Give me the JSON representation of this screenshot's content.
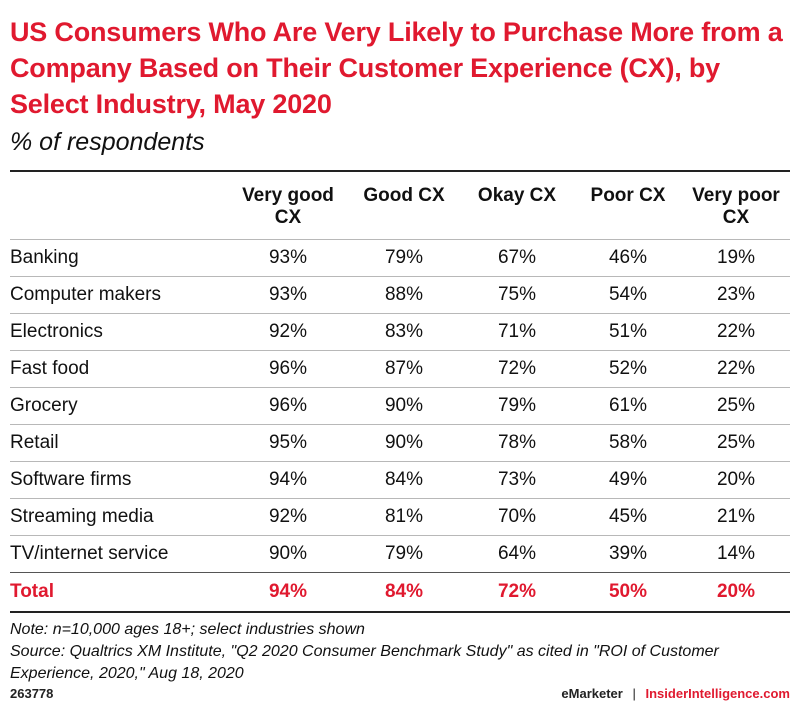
{
  "chart_data": {
    "type": "table",
    "title": "US Consumers Who Are Very Likely to Purchase More from a Company Based on Their Customer Experience (CX), by Select Industry, May 2020",
    "subtitle": "% of respondents",
    "columns": [
      "Very good CX",
      "Good CX",
      "Okay CX",
      "Poor CX",
      "Very poor CX"
    ],
    "rows": [
      {
        "label": "Banking",
        "values": [
          "93%",
          "79%",
          "67%",
          "46%",
          "19%"
        ]
      },
      {
        "label": "Computer makers",
        "values": [
          "93%",
          "88%",
          "75%",
          "54%",
          "23%"
        ]
      },
      {
        "label": "Electronics",
        "values": [
          "92%",
          "83%",
          "71%",
          "51%",
          "22%"
        ]
      },
      {
        "label": "Fast food",
        "values": [
          "96%",
          "87%",
          "72%",
          "52%",
          "22%"
        ]
      },
      {
        "label": "Grocery",
        "values": [
          "96%",
          "90%",
          "79%",
          "61%",
          "25%"
        ]
      },
      {
        "label": "Retail",
        "values": [
          "95%",
          "90%",
          "78%",
          "58%",
          "25%"
        ]
      },
      {
        "label": "Software firms",
        "values": [
          "94%",
          "84%",
          "73%",
          "49%",
          "20%"
        ]
      },
      {
        "label": "Streaming media",
        "values": [
          "92%",
          "81%",
          "70%",
          "45%",
          "21%"
        ]
      },
      {
        "label": "TV/internet service",
        "values": [
          "90%",
          "79%",
          "64%",
          "39%",
          "14%"
        ]
      }
    ],
    "total": {
      "label": "Total",
      "values": [
        "94%",
        "84%",
        "72%",
        "50%",
        "20%"
      ]
    }
  },
  "notes": {
    "note": "Note: n=10,000 ages 18+; select industries shown",
    "source": "Source: Qualtrics XM Institute, \"Q2 2020 Consumer Benchmark Study\" as cited in \"ROI of Customer Experience, 2020,\" Aug 18, 2020"
  },
  "footer": {
    "chart_id": "263778",
    "brand_left": "eMarketer",
    "separator": "|",
    "brand_right": "InsiderIntelligence.com"
  },
  "colors": {
    "accent": "#e0192f"
  }
}
